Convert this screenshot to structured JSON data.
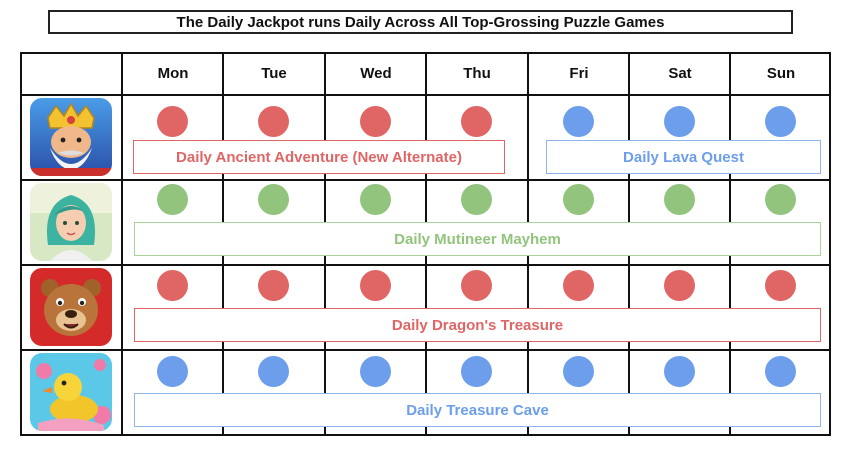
{
  "title": "The Daily Jackpot runs Daily Across All Top-Grossing Puzzle Games",
  "days": [
    "Mon",
    "Tue",
    "Wed",
    "Thu",
    "Fri",
    "Sat",
    "Sun"
  ],
  "colors": {
    "red": "#e06666",
    "blue": "#6d9eeb",
    "green": "#93c47d"
  },
  "games": [
    {
      "icon": "king-character-icon",
      "dots": [
        "red",
        "red",
        "red",
        "red",
        "blue",
        "blue",
        "blue"
      ],
      "events": [
        {
          "label": "Daily Ancient Adventure (New Alternate)",
          "color": "red",
          "days": "Mon-Thu"
        },
        {
          "label": "Daily Lava Quest",
          "color": "blue",
          "days": "Fri-Sun"
        }
      ]
    },
    {
      "icon": "green-haired-girl-icon",
      "dots": [
        "green",
        "green",
        "green",
        "green",
        "green",
        "green",
        "green"
      ],
      "events": [
        {
          "label": "Daily Mutineer Mayhem",
          "color": "green",
          "days": "Mon-Sun"
        }
      ]
    },
    {
      "icon": "bear-character-icon",
      "dots": [
        "red",
        "red",
        "red",
        "red",
        "red",
        "red",
        "red"
      ],
      "events": [
        {
          "label": "Daily Dragon's Treasure",
          "color": "red",
          "days": "Mon-Sun"
        }
      ]
    },
    {
      "icon": "rubber-duck-icon",
      "dots": [
        "blue",
        "blue",
        "blue",
        "blue",
        "blue",
        "blue",
        "blue"
      ],
      "events": [
        {
          "label": "Daily Treasure Cave",
          "color": "blue",
          "days": "Mon-Sun"
        }
      ]
    }
  ]
}
